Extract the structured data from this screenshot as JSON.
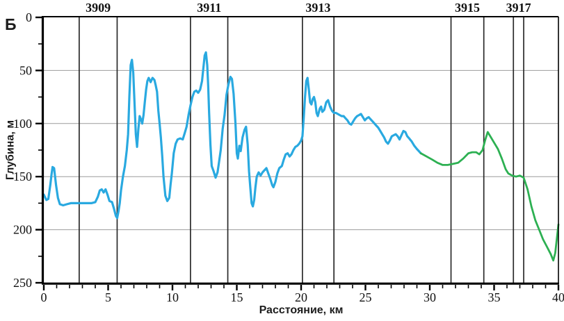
{
  "figure_label": "Б",
  "chart_data": {
    "type": "line",
    "xlabel": "Расстояние, км",
    "ylabel": "Глубина, м",
    "xlim": [
      0,
      40
    ],
    "ylim": [
      0,
      250
    ],
    "y_inverted": true,
    "grid": "horizontal-only",
    "x_major_ticks": [
      0,
      5,
      10,
      15,
      20,
      25,
      30,
      35,
      40
    ],
    "x_minor_step": 1,
    "y_major_ticks": [
      0,
      50,
      100,
      150,
      200,
      250
    ],
    "y_minor_step": 25,
    "grid_lines_m": [
      50,
      100,
      150,
      200
    ],
    "stations": {
      "boundary_lines_km": [
        2.75,
        5.7,
        11.4,
        14.3,
        20.1,
        22.55,
        31.65,
        34.2,
        36.5,
        37.3
      ],
      "labels": [
        {
          "text": "3909",
          "km": 4.22
        },
        {
          "text": "3911",
          "km": 12.85
        },
        {
          "text": "3913",
          "km": 21.32
        },
        {
          "text": "3915",
          "km": 32.92
        },
        {
          "text": "3917",
          "km": 36.9
        }
      ]
    },
    "series": [
      {
        "name": "measured-depth-profile",
        "color": "#29A9E0",
        "width": 3.2,
        "points": [
          [
            0.0,
            167
          ],
          [
            0.2,
            172
          ],
          [
            0.35,
            171
          ],
          [
            0.5,
            158
          ],
          [
            0.6,
            148
          ],
          [
            0.68,
            141
          ],
          [
            0.8,
            142
          ],
          [
            0.95,
            158
          ],
          [
            1.1,
            170
          ],
          [
            1.25,
            176
          ],
          [
            1.5,
            177
          ],
          [
            1.8,
            176
          ],
          [
            2.1,
            175
          ],
          [
            2.5,
            175
          ],
          [
            2.9,
            175
          ],
          [
            3.3,
            175
          ],
          [
            3.7,
            175
          ],
          [
            4.0,
            174
          ],
          [
            4.2,
            169
          ],
          [
            4.35,
            163
          ],
          [
            4.5,
            162
          ],
          [
            4.65,
            165
          ],
          [
            4.8,
            162
          ],
          [
            4.95,
            167
          ],
          [
            5.1,
            173
          ],
          [
            5.3,
            174
          ],
          [
            5.45,
            180
          ],
          [
            5.6,
            187
          ],
          [
            5.7,
            189
          ],
          [
            5.8,
            183
          ],
          [
            5.9,
            175
          ],
          [
            6.0,
            163
          ],
          [
            6.15,
            150
          ],
          [
            6.3,
            140
          ],
          [
            6.45,
            125
          ],
          [
            6.55,
            110
          ],
          [
            6.65,
            75
          ],
          [
            6.75,
            45
          ],
          [
            6.85,
            40
          ],
          [
            6.95,
            52
          ],
          [
            7.05,
            80
          ],
          [
            7.15,
            110
          ],
          [
            7.25,
            122
          ],
          [
            7.35,
            105
          ],
          [
            7.45,
            93
          ],
          [
            7.55,
            96
          ],
          [
            7.65,
            100
          ],
          [
            7.75,
            92
          ],
          [
            7.85,
            80
          ],
          [
            7.95,
            68
          ],
          [
            8.05,
            60
          ],
          [
            8.15,
            57
          ],
          [
            8.3,
            61
          ],
          [
            8.45,
            57
          ],
          [
            8.6,
            59
          ],
          [
            8.7,
            64
          ],
          [
            8.8,
            70
          ],
          [
            8.9,
            88
          ],
          [
            9.0,
            100
          ],
          [
            9.1,
            113
          ],
          [
            9.2,
            130
          ],
          [
            9.3,
            150
          ],
          [
            9.45,
            168
          ],
          [
            9.6,
            173
          ],
          [
            9.75,
            170
          ],
          [
            9.85,
            158
          ],
          [
            9.95,
            147
          ],
          [
            10.1,
            128
          ],
          [
            10.25,
            119
          ],
          [
            10.4,
            115
          ],
          [
            10.6,
            114
          ],
          [
            10.8,
            115
          ],
          [
            10.95,
            109
          ],
          [
            11.1,
            103
          ],
          [
            11.25,
            92
          ],
          [
            11.4,
            83
          ],
          [
            11.55,
            75
          ],
          [
            11.7,
            70
          ],
          [
            11.85,
            69
          ],
          [
            12.0,
            71
          ],
          [
            12.15,
            68
          ],
          [
            12.3,
            60
          ],
          [
            12.4,
            48
          ],
          [
            12.5,
            36
          ],
          [
            12.6,
            33
          ],
          [
            12.7,
            45
          ],
          [
            12.78,
            65
          ],
          [
            12.85,
            90
          ],
          [
            12.95,
            120
          ],
          [
            13.05,
            140
          ],
          [
            13.2,
            145
          ],
          [
            13.35,
            151
          ],
          [
            13.5,
            146
          ],
          [
            13.6,
            138
          ],
          [
            13.75,
            125
          ],
          [
            13.9,
            105
          ],
          [
            14.05,
            92
          ],
          [
            14.2,
            73
          ],
          [
            14.35,
            63
          ],
          [
            14.5,
            56
          ],
          [
            14.62,
            58
          ],
          [
            14.75,
            72
          ],
          [
            14.9,
            100
          ],
          [
            15.0,
            128
          ],
          [
            15.08,
            133
          ],
          [
            15.2,
            121
          ],
          [
            15.3,
            126
          ],
          [
            15.45,
            113
          ],
          [
            15.6,
            106
          ],
          [
            15.72,
            103
          ],
          [
            15.85,
            120
          ],
          [
            15.95,
            145
          ],
          [
            16.05,
            160
          ],
          [
            16.15,
            175
          ],
          [
            16.25,
            178
          ],
          [
            16.35,
            172
          ],
          [
            16.45,
            160
          ],
          [
            16.55,
            150
          ],
          [
            16.7,
            146
          ],
          [
            16.85,
            149
          ],
          [
            17.0,
            146
          ],
          [
            17.15,
            144
          ],
          [
            17.3,
            142
          ],
          [
            17.45,
            147
          ],
          [
            17.6,
            152
          ],
          [
            17.75,
            158
          ],
          [
            17.85,
            160
          ],
          [
            18.0,
            155
          ],
          [
            18.15,
            147
          ],
          [
            18.3,
            142
          ],
          [
            18.5,
            140
          ],
          [
            18.65,
            134
          ],
          [
            18.8,
            129
          ],
          [
            18.95,
            128
          ],
          [
            19.1,
            131
          ],
          [
            19.25,
            129
          ],
          [
            19.4,
            125
          ],
          [
            19.55,
            122
          ],
          [
            19.7,
            121
          ],
          [
            19.85,
            119
          ],
          [
            20.0,
            116
          ],
          [
            20.1,
            112
          ],
          [
            20.2,
            95
          ],
          [
            20.3,
            75
          ],
          [
            20.4,
            60
          ],
          [
            20.5,
            57
          ],
          [
            20.6,
            68
          ],
          [
            20.7,
            80
          ],
          [
            20.8,
            82
          ],
          [
            20.9,
            77
          ],
          [
            21.0,
            75
          ],
          [
            21.1,
            80
          ],
          [
            21.2,
            90
          ],
          [
            21.3,
            93
          ],
          [
            21.45,
            86
          ],
          [
            21.55,
            84
          ],
          [
            21.65,
            89
          ],
          [
            21.8,
            87
          ],
          [
            21.95,
            80
          ],
          [
            22.1,
            78
          ],
          [
            22.25,
            84
          ],
          [
            22.4,
            88
          ],
          [
            22.55,
            90
          ],
          [
            22.7,
            90
          ],
          [
            22.85,
            91
          ],
          [
            23.0,
            92
          ],
          [
            23.15,
            93
          ],
          [
            23.3,
            93
          ],
          [
            23.45,
            95
          ],
          [
            23.6,
            97
          ],
          [
            23.75,
            100
          ],
          [
            23.9,
            101
          ],
          [
            24.05,
            98
          ],
          [
            24.2,
            95
          ],
          [
            24.35,
            93
          ],
          [
            24.5,
            92
          ],
          [
            24.65,
            91
          ],
          [
            24.8,
            94
          ],
          [
            24.95,
            97
          ],
          [
            25.1,
            95
          ],
          [
            25.25,
            94
          ],
          [
            25.4,
            96
          ],
          [
            25.55,
            98
          ],
          [
            25.7,
            100
          ],
          [
            25.85,
            102
          ],
          [
            26.0,
            104
          ],
          [
            26.15,
            107
          ],
          [
            26.3,
            110
          ],
          [
            26.45,
            113
          ],
          [
            26.6,
            117
          ],
          [
            26.75,
            119
          ],
          [
            26.9,
            116
          ],
          [
            27.05,
            112
          ],
          [
            27.2,
            111
          ],
          [
            27.35,
            110
          ],
          [
            27.5,
            112
          ],
          [
            27.65,
            115
          ],
          [
            27.8,
            111
          ],
          [
            27.95,
            107
          ],
          [
            28.1,
            108
          ],
          [
            28.25,
            112
          ],
          [
            28.4,
            114
          ],
          [
            28.6,
            117
          ],
          [
            28.8,
            121
          ],
          [
            29.0,
            124
          ],
          [
            29.15,
            126
          ],
          [
            29.3,
            128
          ]
        ]
      },
      {
        "name": "extrapolated-depth-profile",
        "color": "#2DB052",
        "width": 2.8,
        "points": [
          [
            29.3,
            128
          ],
          [
            29.6,
            130
          ],
          [
            29.9,
            132
          ],
          [
            30.2,
            134
          ],
          [
            30.6,
            137
          ],
          [
            31.0,
            139
          ],
          [
            31.4,
            139
          ],
          [
            31.8,
            138
          ],
          [
            32.2,
            137
          ],
          [
            32.6,
            133
          ],
          [
            33.0,
            128
          ],
          [
            33.3,
            127
          ],
          [
            33.6,
            127
          ],
          [
            33.85,
            129
          ],
          [
            34.1,
            125
          ],
          [
            34.3,
            116
          ],
          [
            34.5,
            108
          ],
          [
            34.7,
            112
          ],
          [
            35.0,
            118
          ],
          [
            35.3,
            124
          ],
          [
            35.6,
            133
          ],
          [
            35.9,
            143
          ],
          [
            36.1,
            147
          ],
          [
            36.4,
            149
          ],
          [
            36.7,
            150
          ],
          [
            37.0,
            149
          ],
          [
            37.3,
            151
          ],
          [
            37.6,
            162
          ],
          [
            37.9,
            178
          ],
          [
            38.2,
            191
          ],
          [
            38.5,
            200
          ],
          [
            38.8,
            209
          ],
          [
            39.1,
            216
          ],
          [
            39.4,
            223
          ],
          [
            39.6,
            229
          ],
          [
            39.75,
            222
          ],
          [
            40.0,
            195
          ]
        ]
      }
    ]
  }
}
